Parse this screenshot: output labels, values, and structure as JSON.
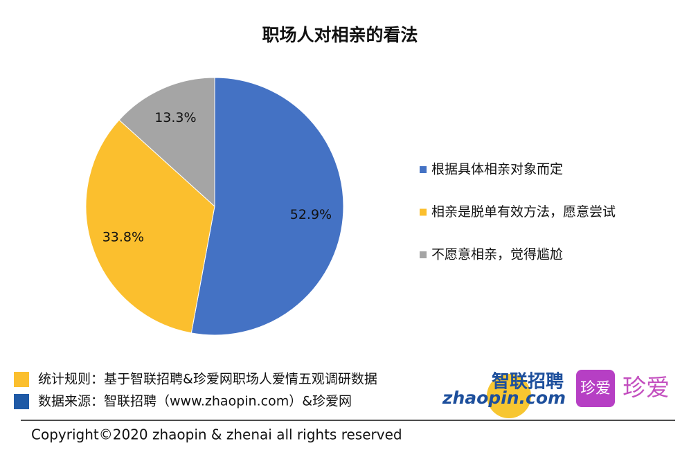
{
  "chart_data": {
    "type": "pie",
    "title": "职场人对相亲的看法",
    "categories": [
      "根据具体相亲对象而定",
      "相亲是脱单有效方法，愿意尝试",
      "不愿意相亲，觉得尴尬"
    ],
    "values": [
      52.9,
      33.8,
      13.3
    ],
    "value_labels": [
      "52.9%",
      "33.8%",
      "13.3%"
    ],
    "colors": [
      "#4472c4",
      "#fbbf2e",
      "#a5a5a5"
    ],
    "legend": "right"
  },
  "footer": {
    "notes": [
      {
        "text": "统计规则：基于智联招聘&珍爱网职场人爱情五观调研数据",
        "color": "#fbbf2e"
      },
      {
        "text": "数据来源：智联招聘（www.zhaopin.com）&珍爱网",
        "color": "#1f5aa6"
      }
    ],
    "logo_zhaopin_cn": "智联招聘",
    "logo_zhaopin_en": "zhaopin.com",
    "logo_zhenai_icon": "珍爱",
    "logo_zhenai": "珍爱",
    "copyright": "Copyright©2020 zhaopin & zhenai  all rights reserved"
  }
}
